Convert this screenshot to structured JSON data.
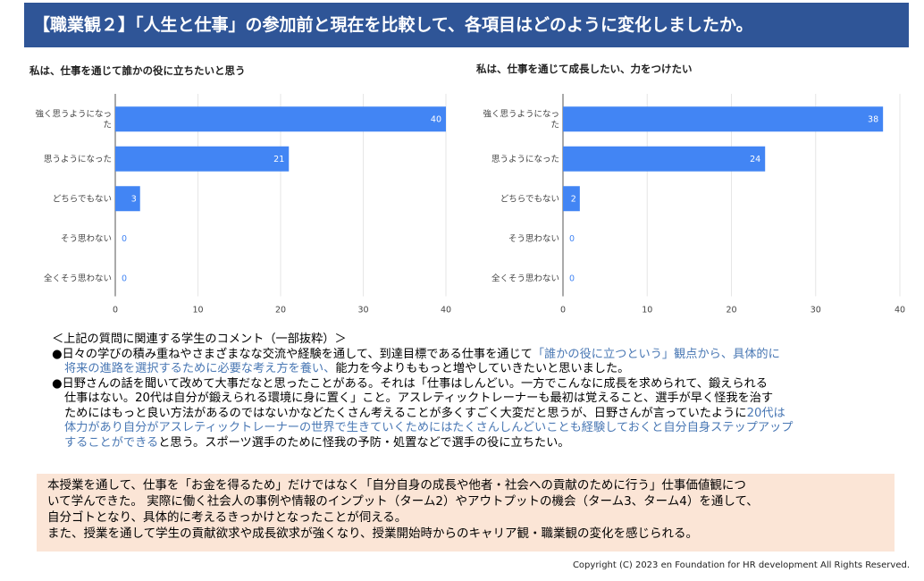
{
  "header": {
    "title": "【職業観２】「人生と仕事」の参加前と現在を比較して、各項目はどのように変化しましたか。"
  },
  "chart_data": [
    {
      "type": "bar",
      "orientation": "horizontal",
      "title": "私は、仕事を通じて誰かの役に立ちたいと思う",
      "categories": [
        "強く思うようになった",
        "思うようになった",
        "どちらでもない",
        "そう思わない",
        "全くそう思わない"
      ],
      "values": [
        40,
        21,
        3,
        0,
        0
      ],
      "xlim": [
        0,
        40
      ],
      "xticks": [
        "0",
        "10",
        "20",
        "30",
        "40"
      ],
      "color": "#4285f4"
    },
    {
      "type": "bar",
      "orientation": "horizontal",
      "title": "私は、仕事を通じて成長したい、力をつけたい",
      "categories": [
        "強く思うようになった",
        "思うようになった",
        "どちらでもない",
        "そう思わない",
        "全くそう思わない"
      ],
      "values": [
        38,
        24,
        2,
        0,
        0
      ],
      "xlim": [
        0,
        40
      ],
      "xticks": [
        "0",
        "10",
        "20",
        "30",
        "40"
      ],
      "color": "#4285f4"
    }
  ],
  "comments": {
    "heading": "＜上記の質問に関連する学生のコメント（一部抜粋）＞",
    "c1_a": "●日々の学びの積み重ねやさまざまなな交流や経験を通して、到達目標である仕事を通じて",
    "c1_b": "「誰かの役に立つという」観点から、具体的に",
    "c1_c": "将来の進路を選択するために必要な考え方を養い、",
    "c1_d": "能力を今よりももっと増やしていきたいと思いました。",
    "c2_a": "●日野さんの話を聞いて改めて大事だなと思ったことがある。それは「仕事はしんどい。一方でこんなに成長を求められて、鍛えられる",
    "c2_b": "仕事はない。20代は自分が鍛えられる環境に身に置く」こと。アスレティックトレーナーも最初は覚えること、選手が早く怪我を治す",
    "c2_c": "ためにはもっと良い方法があるのではないかなどたくさん考えることが多くすごく大変だと思うが、日野さんが言っていたように",
    "c2_d": "20代は",
    "c2_e": "体力があり自分がアスレティックトレーナーの世界で生きていくためにはたくさんしんどいことも経験しておくと自分自身ステップアップ",
    "c2_f": "することができる",
    "c2_g": "と思う。スポーツ選手のために怪我の予防・処置などで選手の役に立ちたい。"
  },
  "summary": [
    "本授業を通して、仕事を「お金を得るため」だけではなく「自分自身の成長や他者・社会への貢献のために行う」仕事価値観につ",
    "いて学んできた。 実際に働く社会人の事例や情報のインプット（ターム2）やアウトプットの機会（ターム3、ターム4）を通して、",
    "自分ゴトとなり、具体的に考えるきっかけとなったことが伺える。",
    "また、授業を通して学生の貢献欲求や成長欲求が強くなり、授業開始時からのキャリア観・職業観の変化を感じられる。"
  ],
  "footer": {
    "copyright": "Copyright (C) 2023  en Foundation for HR development  All Rights Reserved."
  }
}
